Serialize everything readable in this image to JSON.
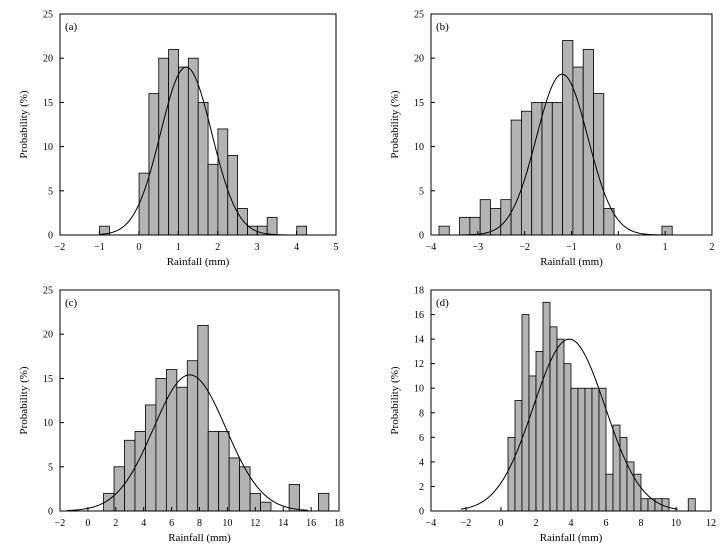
{
  "chart_data": [
    {
      "type": "bar",
      "panel_label": "(a)",
      "xlabel": "Rainfall  (mm)",
      "ylabel": "Probability  (%)",
      "xlim": [
        -2,
        5
      ],
      "ylim": [
        0,
        25
      ],
      "xticks": [
        -2,
        -1,
        0,
        1,
        2,
        3,
        4,
        5
      ],
      "yticks": [
        0,
        5,
        10,
        15,
        20,
        25
      ],
      "bin_width": 0.25,
      "bins": [
        {
          "x": -0.87,
          "value": 1
        },
        {
          "x": 0.13,
          "value": 7
        },
        {
          "x": 0.38,
          "value": 16
        },
        {
          "x": 0.63,
          "value": 20
        },
        {
          "x": 0.88,
          "value": 21
        },
        {
          "x": 1.13,
          "value": 19
        },
        {
          "x": 1.38,
          "value": 20
        },
        {
          "x": 1.63,
          "value": 15
        },
        {
          "x": 1.88,
          "value": 8
        },
        {
          "x": 2.13,
          "value": 12
        },
        {
          "x": 2.38,
          "value": 9
        },
        {
          "x": 2.63,
          "value": 3
        },
        {
          "x": 2.88,
          "value": 1
        },
        {
          "x": 3.13,
          "value": 1
        },
        {
          "x": 3.38,
          "value": 2
        },
        {
          "x": 4.13,
          "value": 1
        }
      ],
      "fit": {
        "type": "normal",
        "mean": 1.2,
        "sd": 0.65,
        "peak": 19,
        "range": [
          -1.0,
          3.9
        ]
      }
    },
    {
      "type": "bar",
      "panel_label": "(b)",
      "xlabel": "Rainfall  (mm)",
      "ylabel": "Probability  (%)",
      "xlim": [
        -4,
        2
      ],
      "ylim": [
        0,
        25
      ],
      "xticks": [
        -4,
        -3,
        -2,
        -1,
        0,
        1,
        2
      ],
      "yticks": [
        0,
        5,
        10,
        15,
        20,
        25
      ],
      "bin_width": 0.22,
      "bins": [
        {
          "x": -3.72,
          "value": 1
        },
        {
          "x": -3.28,
          "value": 2
        },
        {
          "x": -3.06,
          "value": 2
        },
        {
          "x": -2.84,
          "value": 4
        },
        {
          "x": -2.62,
          "value": 3
        },
        {
          "x": -2.4,
          "value": 4
        },
        {
          "x": -2.18,
          "value": 13
        },
        {
          "x": -1.96,
          "value": 14
        },
        {
          "x": -1.74,
          "value": 15
        },
        {
          "x": -1.52,
          "value": 15
        },
        {
          "x": -1.3,
          "value": 15
        },
        {
          "x": -1.08,
          "value": 22
        },
        {
          "x": -0.86,
          "value": 19
        },
        {
          "x": -0.64,
          "value": 21
        },
        {
          "x": -0.42,
          "value": 16
        },
        {
          "x": -0.2,
          "value": 3
        },
        {
          "x": 1.04,
          "value": 1
        }
      ],
      "fit": {
        "type": "normal",
        "mean": -1.2,
        "sd": 0.55,
        "peak": 18.2,
        "range": [
          -3.8,
          1.0
        ]
      }
    },
    {
      "type": "bar",
      "panel_label": "(c)",
      "xlabel": "Rainfall  (mm)",
      "ylabel": "Probability  (%)",
      "xlim": [
        -2,
        18
      ],
      "ylim": [
        0,
        25
      ],
      "xticks": [
        -2,
        0,
        2,
        4,
        6,
        8,
        10,
        12,
        14,
        16,
        18
      ],
      "yticks": [
        0,
        5,
        10,
        15,
        20,
        25
      ],
      "bin_width": 0.75,
      "bins": [
        {
          "x": 1.5,
          "value": 2
        },
        {
          "x": 2.25,
          "value": 5
        },
        {
          "x": 3.0,
          "value": 8
        },
        {
          "x": 3.75,
          "value": 9
        },
        {
          "x": 4.5,
          "value": 12
        },
        {
          "x": 5.25,
          "value": 15
        },
        {
          "x": 6.0,
          "value": 16
        },
        {
          "x": 6.75,
          "value": 14
        },
        {
          "x": 7.5,
          "value": 17
        },
        {
          "x": 8.25,
          "value": 21
        },
        {
          "x": 9.0,
          "value": 9
        },
        {
          "x": 9.75,
          "value": 9
        },
        {
          "x": 10.5,
          "value": 6
        },
        {
          "x": 11.25,
          "value": 5
        },
        {
          "x": 12.0,
          "value": 2
        },
        {
          "x": 12.75,
          "value": 1
        },
        {
          "x": 14.8,
          "value": 3
        },
        {
          "x": 16.9,
          "value": 2
        }
      ],
      "fit": {
        "type": "normal",
        "mean": 7.3,
        "sd": 2.6,
        "peak": 15.4,
        "range": [
          -1.5,
          15.8
        ]
      }
    },
    {
      "type": "bar",
      "panel_label": "(d)",
      "xlabel": "Rainfall  (mm)",
      "ylabel": "Probability  (%)",
      "xlim": [
        -4,
        12
      ],
      "ylim": [
        0,
        18
      ],
      "xticks": [
        -4,
        -2,
        0,
        2,
        4,
        6,
        8,
        10,
        12
      ],
      "yticks": [
        0,
        2,
        4,
        6,
        8,
        10,
        12,
        14,
        16,
        18
      ],
      "bin_width": 0.4,
      "bins": [
        {
          "x": 0.6,
          "value": 6
        },
        {
          "x": 1.0,
          "value": 9
        },
        {
          "x": 1.4,
          "value": 16
        },
        {
          "x": 1.8,
          "value": 11
        },
        {
          "x": 2.2,
          "value": 13
        },
        {
          "x": 2.6,
          "value": 17
        },
        {
          "x": 3.0,
          "value": 15
        },
        {
          "x": 3.4,
          "value": 14
        },
        {
          "x": 3.8,
          "value": 12
        },
        {
          "x": 4.2,
          "value": 10
        },
        {
          "x": 4.6,
          "value": 10
        },
        {
          "x": 5.0,
          "value": 10
        },
        {
          "x": 5.4,
          "value": 10
        },
        {
          "x": 5.8,
          "value": 10
        },
        {
          "x": 6.2,
          "value": 3
        },
        {
          "x": 6.6,
          "value": 7
        },
        {
          "x": 7.0,
          "value": 6
        },
        {
          "x": 7.4,
          "value": 4
        },
        {
          "x": 7.8,
          "value": 3
        },
        {
          "x": 8.2,
          "value": 1
        },
        {
          "x": 8.6,
          "value": 1
        },
        {
          "x": 9.0,
          "value": 1
        },
        {
          "x": 9.4,
          "value": 1
        },
        {
          "x": 10.9,
          "value": 1
        }
      ],
      "fit": {
        "type": "normal",
        "mean": 3.9,
        "sd": 2.05,
        "peak": 14,
        "range": [
          -2.3,
          10.1
        ]
      }
    }
  ]
}
